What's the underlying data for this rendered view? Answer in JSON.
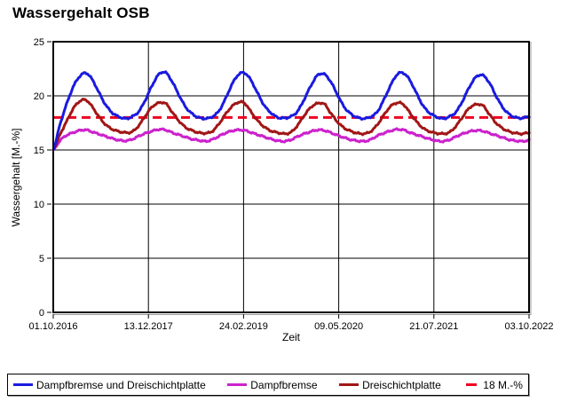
{
  "window": {
    "title": "Wassergehalt OSB"
  },
  "chart_data": {
    "type": "line",
    "title": "Wassergehalt OSB",
    "xlabel": "Zeit",
    "ylabel": "Wassergehalt [M.-%]",
    "ylim": [
      0,
      25
    ],
    "yticks": [
      0,
      5,
      10,
      15,
      20,
      25
    ],
    "xtick_labels": [
      "01.10.2016",
      "13.12.2017",
      "24.02.2019",
      "09.05.2020",
      "21.07.2021",
      "03.10.2022"
    ],
    "x_range_months": [
      0,
      72
    ],
    "grid": true,
    "legend_position": "bottom",
    "background": "#ffffff",
    "grid_color": "#000000",
    "border_color": "#000000",
    "reference_line": {
      "label": "18 M.-%",
      "value": 18,
      "color": "#ee0020",
      "style": "dashed"
    },
    "series": [
      {
        "name": "Dampfbremse und Dreischichtplatte",
        "color": "#1a1ae0",
        "values": [
          15.0,
          17.3,
          19.2,
          20.8,
          21.8,
          22.1,
          21.4,
          20.2,
          19.1,
          18.4,
          18.05,
          17.9,
          18.1,
          18.6,
          19.7,
          21.0,
          22.0,
          22.15,
          21.3,
          20.1,
          19.0,
          18.35,
          18.0,
          17.9,
          18.05,
          18.55,
          19.65,
          21.0,
          21.95,
          22.1,
          21.35,
          20.15,
          19.05,
          18.4,
          18.0,
          17.95,
          18.1,
          18.6,
          19.7,
          20.95,
          21.9,
          22.0,
          21.3,
          20.1,
          19.0,
          18.35,
          18.0,
          17.9,
          18.05,
          18.5,
          19.6,
          20.9,
          21.95,
          22.1,
          21.4,
          20.2,
          19.05,
          18.4,
          18.05,
          17.9,
          18.1,
          18.55,
          19.6,
          20.85,
          21.75,
          21.9,
          21.2,
          20.0,
          18.95,
          18.3,
          18.0,
          17.95,
          18.1
        ]
      },
      {
        "name": "Dampfbremse",
        "color": "#cc22cc",
        "values": [
          15.0,
          15.85,
          16.35,
          16.6,
          16.8,
          16.85,
          16.65,
          16.45,
          16.25,
          16.05,
          15.9,
          15.85,
          16.0,
          16.3,
          16.55,
          16.75,
          16.9,
          16.85,
          16.6,
          16.4,
          16.2,
          16.0,
          15.9,
          15.8,
          15.95,
          16.25,
          16.55,
          16.75,
          16.85,
          16.8,
          16.6,
          16.4,
          16.2,
          16.0,
          15.85,
          15.8,
          15.95,
          16.25,
          16.5,
          16.7,
          16.85,
          16.8,
          16.6,
          16.35,
          16.15,
          15.95,
          15.85,
          15.8,
          15.95,
          16.3,
          16.55,
          16.75,
          16.9,
          16.85,
          16.6,
          16.4,
          16.2,
          16.0,
          15.85,
          15.8,
          15.95,
          16.25,
          16.5,
          16.7,
          16.8,
          16.75,
          16.55,
          16.35,
          16.15,
          15.95,
          15.85,
          15.8,
          15.9
        ]
      },
      {
        "name": "Dreischichtplatte",
        "color": "#a11616",
        "values": [
          15.0,
          16.4,
          17.6,
          18.8,
          19.5,
          19.6,
          18.9,
          18.0,
          17.3,
          16.9,
          16.7,
          16.6,
          16.7,
          17.3,
          18.2,
          19.0,
          19.35,
          19.3,
          18.5,
          17.7,
          17.1,
          16.8,
          16.6,
          16.55,
          16.7,
          17.35,
          18.25,
          19.0,
          19.4,
          19.3,
          18.45,
          17.65,
          17.1,
          16.75,
          16.6,
          16.5,
          16.65,
          17.3,
          18.2,
          18.95,
          19.3,
          19.25,
          18.4,
          17.6,
          17.05,
          16.75,
          16.55,
          16.5,
          16.7,
          17.3,
          18.2,
          19.0,
          19.35,
          19.2,
          18.4,
          17.6,
          17.0,
          16.7,
          16.55,
          16.5,
          16.65,
          17.25,
          18.1,
          18.9,
          19.2,
          19.1,
          18.3,
          17.5,
          17.0,
          16.7,
          16.55,
          16.5,
          16.6
        ]
      }
    ]
  }
}
